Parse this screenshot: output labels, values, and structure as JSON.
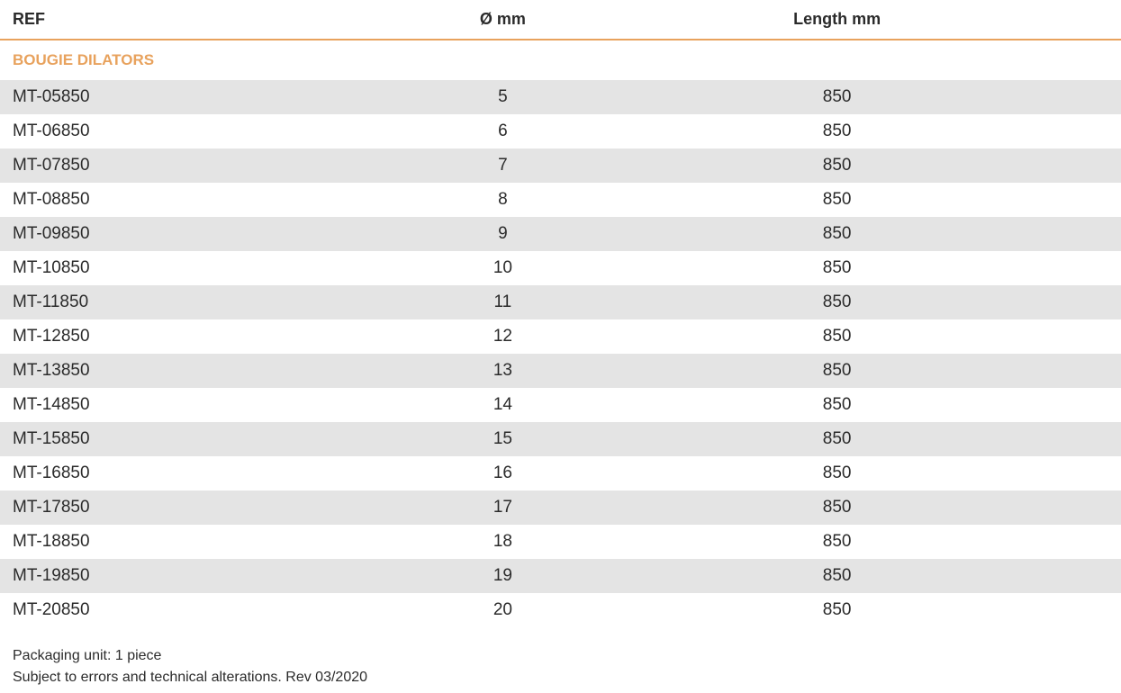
{
  "table": {
    "headers": {
      "ref": "REF",
      "diameter": "Ø mm",
      "length": "Length mm"
    },
    "section_title": "BOUGIE DILATORS",
    "rows": [
      {
        "ref": "MT-05850",
        "diameter": "5",
        "length": "850"
      },
      {
        "ref": "MT-06850",
        "diameter": "6",
        "length": "850"
      },
      {
        "ref": "MT-07850",
        "diameter": "7",
        "length": "850"
      },
      {
        "ref": "MT-08850",
        "diameter": "8",
        "length": "850"
      },
      {
        "ref": "MT-09850",
        "diameter": "9",
        "length": "850"
      },
      {
        "ref": "MT-10850",
        "diameter": "10",
        "length": "850"
      },
      {
        "ref": "MT-11850",
        "diameter": "11",
        "length": "850"
      },
      {
        "ref": "MT-12850",
        "diameter": "12",
        "length": "850"
      },
      {
        "ref": "MT-13850",
        "diameter": "13",
        "length": "850"
      },
      {
        "ref": "MT-14850",
        "diameter": "14",
        "length": "850"
      },
      {
        "ref": "MT-15850",
        "diameter": "15",
        "length": "850"
      },
      {
        "ref": "MT-16850",
        "diameter": "16",
        "length": "850"
      },
      {
        "ref": "MT-17850",
        "diameter": "17",
        "length": "850"
      },
      {
        "ref": "MT-18850",
        "diameter": "18",
        "length": "850"
      },
      {
        "ref": "MT-19850",
        "diameter": "19",
        "length": "850"
      },
      {
        "ref": "MT-20850",
        "diameter": "20",
        "length": "850"
      }
    ]
  },
  "footer": {
    "packaging": "Packaging unit: 1 piece",
    "disclaimer": "Subject to errors and technical alterations. Rev 03/2020"
  },
  "colors": {
    "accent": "#e8a25d",
    "row_shade": "#e4e4e4",
    "text": "#2b2b2b"
  }
}
